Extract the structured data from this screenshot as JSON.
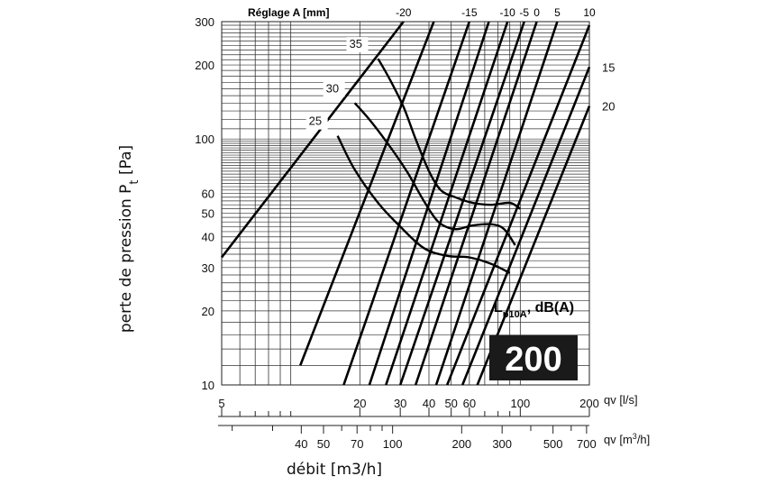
{
  "chart_data": {
    "type": "line",
    "scale": "log-log",
    "grid": true,
    "xlabel": "débit [m3/h]",
    "ylabel": "perte de pression",
    "ylabel_symbol": "P",
    "ylabel_sub": "t",
    "ylabel_unit": "[Pa]",
    "ylim": [
      10,
      300
    ],
    "xlim_ls": [
      5,
      200
    ],
    "y_ticks": [
      10,
      20,
      30,
      40,
      50,
      60,
      100,
      200,
      300
    ],
    "x_axis_ls": {
      "label": "qv [l/s]",
      "ticks": [
        5,
        20,
        30,
        40,
        50,
        60,
        100,
        200
      ]
    },
    "x_axis_m3h": {
      "label_main": "qv [m",
      "label_sup": "3",
      "label_end": "/h]",
      "ticks": [
        40,
        50,
        70,
        100,
        200,
        300,
        500,
        700
      ]
    },
    "setting_title": "Réglage A [mm]",
    "setting_lines": [
      {
        "label": "-20",
        "points": [
          [
            5,
            33
          ],
          [
            31,
            300
          ]
        ]
      },
      {
        "label": "",
        "points": [
          [
            11,
            12
          ],
          [
            42,
            300
          ]
        ]
      },
      {
        "label": "-15",
        "points": [
          [
            17,
            10
          ],
          [
            60,
            300
          ]
        ]
      },
      {
        "label": "",
        "points": [
          [
            22,
            10
          ],
          [
            73,
            300
          ]
        ]
      },
      {
        "label": "-10",
        "points": [
          [
            26,
            10
          ],
          [
            88,
            300
          ]
        ]
      },
      {
        "label": "-5",
        "points": [
          [
            30,
            10
          ],
          [
            104,
            300
          ]
        ]
      },
      {
        "label": "0",
        "points": [
          [
            35,
            10
          ],
          [
            118,
            300
          ]
        ]
      },
      {
        "label": "5",
        "points": [
          [
            43,
            10
          ],
          [
            145,
            300
          ]
        ]
      },
      {
        "label": "10",
        "points": [
          [
            48,
            10
          ],
          [
            200,
            290
          ]
        ]
      },
      {
        "label": "15",
        "points": [
          [
            56,
            10
          ],
          [
            200,
            196
          ]
        ]
      },
      {
        "label": "20",
        "points": [
          [
            65,
            10
          ],
          [
            200,
            136
          ]
        ]
      }
    ],
    "noise_series": [
      {
        "name": "25",
        "points": [
          [
            16,
            103
          ],
          [
            19,
            75
          ],
          [
            24,
            55
          ],
          [
            30,
            44
          ],
          [
            38,
            36
          ],
          [
            48,
            33.5
          ],
          [
            60,
            33
          ],
          [
            75,
            31
          ],
          [
            90,
            28.5
          ]
        ]
      },
      {
        "name": "30",
        "points": [
          [
            19,
            140
          ],
          [
            22,
            120
          ],
          [
            26,
            98
          ],
          [
            32,
            74
          ],
          [
            38,
            56
          ],
          [
            44,
            46
          ],
          [
            52,
            43
          ],
          [
            62,
            44.5
          ],
          [
            75,
            45
          ],
          [
            85,
            43
          ],
          [
            95,
            37
          ]
        ]
      },
      {
        "name": "35",
        "points": [
          [
            24,
            212
          ],
          [
            27,
            175
          ],
          [
            31,
            135
          ],
          [
            35,
            100
          ],
          [
            40,
            74
          ],
          [
            45,
            62
          ],
          [
            52,
            58
          ],
          [
            62,
            55
          ],
          [
            75,
            54
          ],
          [
            90,
            55
          ],
          [
            100,
            52
          ]
        ]
      }
    ],
    "legend_label_main": "L",
    "legend_label_sub": "p10A",
    "legend_label_end": ", dB(A)",
    "model": "200"
  }
}
